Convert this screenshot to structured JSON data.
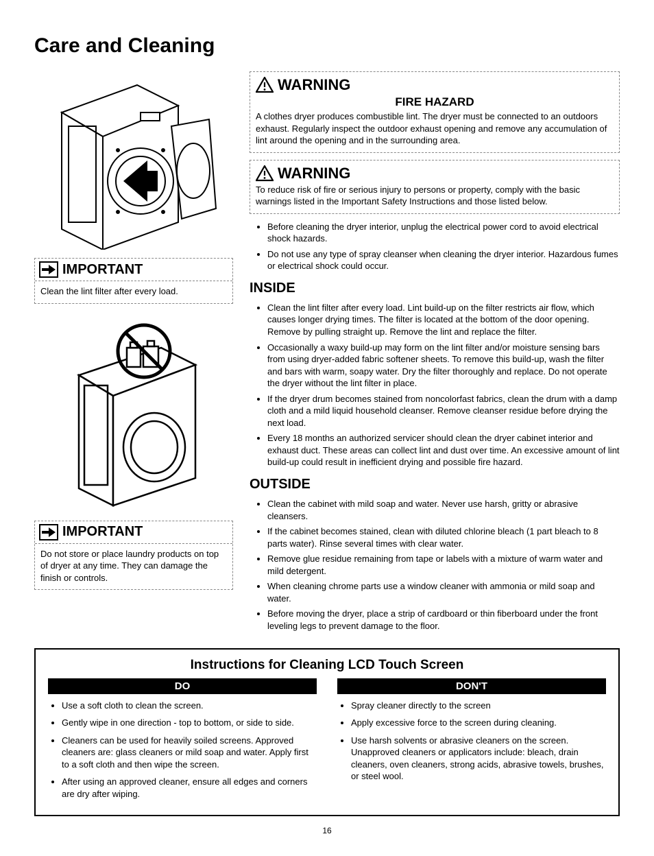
{
  "page_title": "Care and Cleaning",
  "page_number": "16",
  "important1": {
    "label": "IMPORTANT",
    "text": "Clean the lint filter after every load."
  },
  "important2": {
    "label": "IMPORTANT",
    "text": "Do not store or place laundry products on top of dryer at any time. They can damage the finish or controls."
  },
  "warning1": {
    "label": "WARNING",
    "subtitle": "FIRE HAZARD",
    "text": "A clothes dryer produces combustible lint. The dryer must be connected to an outdoors exhaust. Regularly inspect the outdoor exhaust opening and remove any accumulation of lint around the opening and in the surrounding area."
  },
  "warning2": {
    "label": "WARNING",
    "text": "To reduce risk of fire or serious injury to persons or property, comply with the basic warnings listed in the Important Safety Instructions and those listed below."
  },
  "pre_bullets": [
    "Before cleaning the dryer interior, unplug the electrical power cord to avoid electrical shock hazards.",
    "Do not use any type of spray cleanser when cleaning the dryer interior. Hazardous fumes or electrical shock could occur."
  ],
  "inside": {
    "title": "INSIDE",
    "items": [
      "Clean the lint filter after every load. Lint build-up on the filter restricts air flow, which causes longer drying times. The filter is located at the bottom of the door opening. Remove by pulling straight up. Remove the lint and replace the filter.",
      "Occasionally a waxy build-up may form on the lint filter and/or moisture sensing bars from using dryer-added fabric softener sheets. To remove this build-up, wash the filter and bars with warm, soapy water. Dry the filter thoroughly and replace. Do not operate the dryer without the lint filter in place.",
      "If the dryer drum becomes stained from noncolorfast fabrics, clean the drum with a damp cloth and a mild liquid household cleanser. Remove cleanser residue before drying the next load.",
      "Every 18 months an authorized servicer should clean the dryer cabinet interior and exhaust duct. These areas can collect lint and dust over time. An excessive amount of lint build-up could result in inefficient drying and possible fire hazard."
    ]
  },
  "outside": {
    "title": "OUTSIDE",
    "items": [
      "Clean the cabinet with mild soap and water. Never use harsh, gritty or abrasive cleansers.",
      "If the cabinet becomes stained, clean with diluted chlorine bleach (1 part bleach to 8 parts water). Rinse several times with clear water.",
      "Remove glue residue remaining from tape or labels with a mixture of warm water and mild detergent.",
      "When cleaning chrome parts use a window cleaner with ammonia or mild soap and water.",
      "Before moving the dryer, place a strip of cardboard or thin fiberboard under the front leveling legs to prevent damage to the floor."
    ]
  },
  "lcd": {
    "title": "Instructions for Cleaning LCD Touch Screen",
    "do_label": "DO",
    "dont_label": "DON'T",
    "do": [
      "Use a soft cloth to clean the screen.",
      "Gently wipe in one direction - top to bottom, or side to side.",
      "Cleaners can be used for heavily soiled screens. Approved cleaners are: glass cleaners or mild soap and water. Apply first to a soft cloth and then wipe the screen.",
      "After using an approved cleaner, ensure all edges and corners are dry after wiping."
    ],
    "dont": [
      "Spray cleaner directly to the screen",
      "Apply excessive force to the screen during cleaning.",
      "Use harsh solvents or abrasive cleaners on the screen. Unapproved cleaners or applicators include: bleach, drain cleaners, oven cleaners, strong acids, abrasive towels, brushes, or steel wool."
    ]
  }
}
